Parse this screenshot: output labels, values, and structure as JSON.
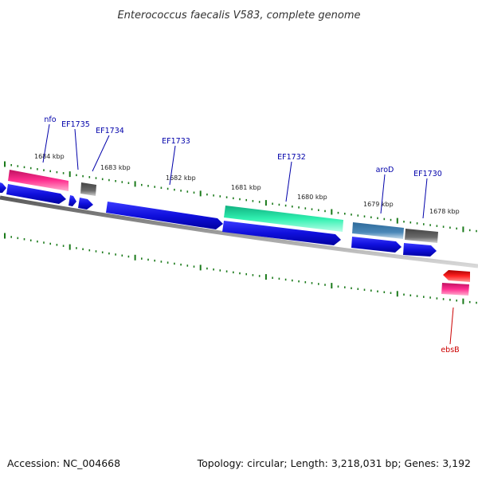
{
  "title": "Enterococcus faecalis V583, complete genome",
  "footer": {
    "accession": "Accession: NC_004668",
    "summary": "Topology: circular; Length: 3,218,031 bp; Genes: 3,192"
  },
  "colors": {
    "backbone": "#808080",
    "tick": "#1a7a1a",
    "label_forward": "#0000aa",
    "label_reverse": "#cc0000",
    "cds_blue": "#1010dd",
    "gene_pink": "#e8207a",
    "gene_gray": "#666666",
    "gene_green": "#20e8a0",
    "gene_steel": "#4a88b8",
    "gene_red": "#ee1111"
  },
  "chart_data": {
    "type": "genome-map",
    "region_kbp": [
      1677.4,
      1684.6
    ],
    "ticks_kbp": [
      1678,
      1679,
      1680,
      1681,
      1682,
      1683,
      1684
    ],
    "tick_labels": [
      "1678 kbp",
      "1679 kbp",
      "1680 kbp",
      "1681 kbp",
      "1682 kbp",
      "1683 kbp",
      "1684 kbp"
    ],
    "gene_labels": [
      {
        "name": "nfo",
        "strand": "forward"
      },
      {
        "name": "EF1735",
        "strand": "forward"
      },
      {
        "name": "EF1734",
        "strand": "forward"
      },
      {
        "name": "EF1733",
        "strand": "forward"
      },
      {
        "name": "EF1732",
        "strand": "forward"
      },
      {
        "name": "aroD",
        "strand": "forward"
      },
      {
        "name": "EF1730",
        "strand": "forward"
      },
      {
        "name": "ebsB",
        "strand": "reverse"
      }
    ]
  }
}
